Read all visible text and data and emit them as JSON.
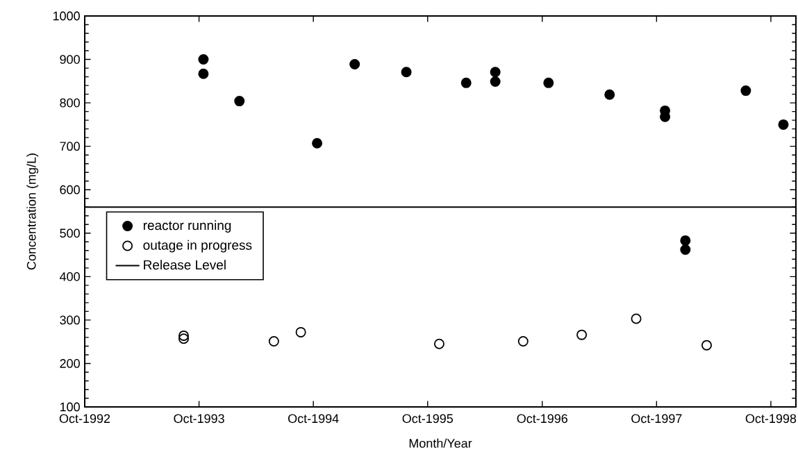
{
  "chart_data": {
    "type": "scatter",
    "xlabel": "Month/Year",
    "ylabel": "Concentration (mg/L)",
    "xlim": [
      "1992-10-01",
      "1998-12-20"
    ],
    "ylim": [
      100,
      1000
    ],
    "xticks": [
      {
        "value": "1992-10-01",
        "label": "Oct-1992"
      },
      {
        "value": "1993-10-01",
        "label": "Oct-1993"
      },
      {
        "value": "1994-10-01",
        "label": "Oct-1994"
      },
      {
        "value": "1995-10-01",
        "label": "Oct-1995"
      },
      {
        "value": "1996-10-01",
        "label": "Oct-1996"
      },
      {
        "value": "1997-10-01",
        "label": "Oct-1997"
      },
      {
        "value": "1998-10-01",
        "label": "Oct-1998"
      }
    ],
    "yticks": [
      100,
      200,
      300,
      400,
      500,
      600,
      700,
      800,
      900,
      1000
    ],
    "legend": "left",
    "grid": false,
    "series": [
      {
        "name": "reactor running",
        "color": "#000000",
        "marker": "circle",
        "x": [
          "1993-10-15",
          "1993-10-15",
          "1994-02-07",
          "1994-10-13",
          "1995-02-10",
          "1995-07-25",
          "1996-02-01",
          "1996-05-04",
          "1996-05-04",
          "1996-10-21",
          "1997-05-04",
          "1997-10-28",
          "1997-10-28",
          "1998-01-01",
          "1998-01-01",
          "1998-07-13",
          "1998-11-10"
        ],
        "values": [
          900,
          867,
          804,
          707,
          889,
          871,
          846,
          871,
          849,
          846,
          819,
          782,
          768,
          483,
          462,
          828,
          750
        ]
      },
      {
        "name": "outage in progress",
        "color": "#000000",
        "marker": "circle",
        "x": [
          "1993-08-13",
          "1993-08-13",
          "1994-05-28",
          "1994-08-22",
          "1995-11-07",
          "1996-08-01",
          "1997-02-04",
          "1997-07-28",
          "1998-03-10"
        ],
        "values": [
          264,
          257,
          251,
          272,
          245,
          251,
          266,
          303,
          242
        ]
      }
    ],
    "ref_lines": [
      {
        "axis": "y",
        "value": 560,
        "label": "Release Level",
        "color": "#000000",
        "line_style": "solid"
      }
    ]
  }
}
